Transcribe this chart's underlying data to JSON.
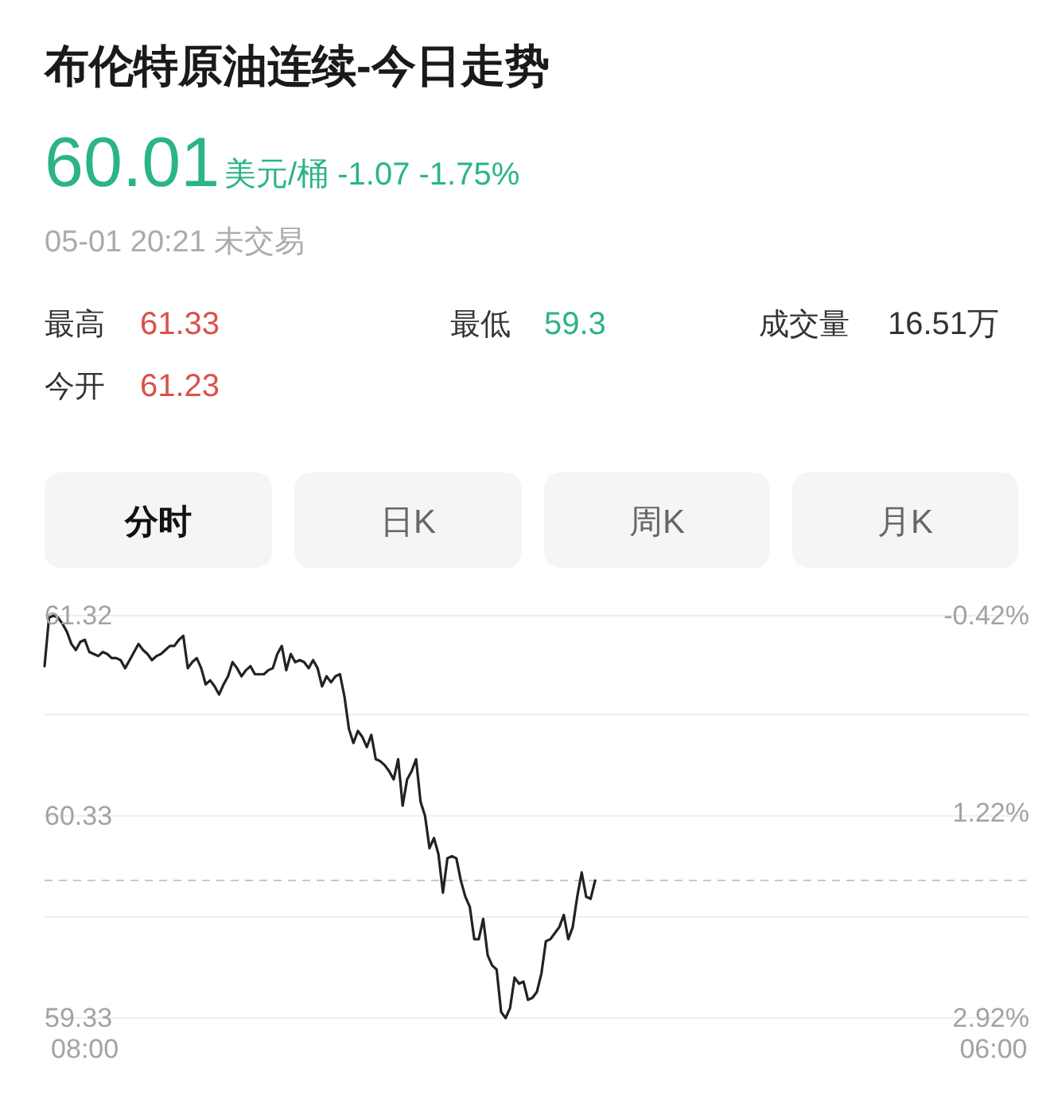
{
  "chart_data": {
    "type": "line",
    "title": "布伦特原油连续-今日走势",
    "annotations": [
      "60.01",
      "美元/桶 -1.07 -1.75%",
      "05-01 20:21 未交易",
      "最高",
      "61.33",
      "最低",
      "59.3",
      "成交量",
      "16.51万",
      "今开",
      "61.23",
      "分时",
      "日K",
      "周K",
      "月K"
    ],
    "categories": [
      null,
      null,
      null,
      null,
      null,
      null,
      null,
      null,
      null,
      "08:00",
      null,
      null,
      null,
      null,
      null,
      null,
      null,
      null,
      null,
      null,
      null,
      null,
      null,
      null,
      null,
      null,
      null,
      null,
      null,
      null,
      null,
      null,
      null,
      null,
      null,
      null,
      null,
      null,
      null,
      null,
      null,
      null,
      null,
      null,
      null,
      null,
      null,
      null,
      null,
      null,
      null,
      null,
      null,
      null,
      null,
      null,
      null,
      null,
      null,
      null,
      null,
      null,
      null,
      null,
      null,
      null,
      null,
      null,
      null,
      null,
      null,
      null,
      null,
      null,
      null,
      null,
      null,
      null,
      null,
      null,
      null,
      null,
      null,
      null,
      null,
      null,
      null,
      null,
      null,
      null,
      null,
      null,
      null,
      null,
      null,
      null,
      null,
      null,
      null,
      null,
      null,
      null,
      null,
      null,
      null,
      null,
      null,
      null,
      null,
      null,
      null,
      null,
      null,
      null,
      null,
      null,
      null,
      null,
      null,
      null,
      null,
      null,
      null,
      null,
      null,
      null,
      null,
      null,
      null,
      null,
      null,
      null,
      null,
      null,
      null,
      null,
      null,
      null,
      null,
      null,
      null,
      null,
      null,
      null,
      null,
      null,
      null,
      null,
      null,
      null,
      null,
      null,
      null,
      null,
      null,
      null,
      null,
      null,
      null,
      null,
      null,
      null,
      null,
      null,
      null,
      null,
      null,
      null,
      null,
      null,
      null,
      null,
      null,
      null,
      null,
      null,
      null,
      null,
      null,
      null,
      null,
      null,
      null,
      null,
      null,
      null,
      null,
      null,
      null,
      null,
      null,
      null,
      null,
      null,
      null,
      null,
      null,
      null,
      null,
      null,
      null,
      null,
      null,
      null,
      null,
      null,
      null,
      null,
      null,
      null,
      null,
      null,
      "06:00",
      null,
      null,
      null,
      null,
      null,
      null,
      null,
      null
    ],
    "series": [
      {
        "color": "#222222",
        "values": [
          61.07,
          61.31,
          61.32,
          61.31,
          61.28,
          61.24,
          61.18,
          61.15,
          61.19,
          61.2,
          61.14,
          61.13,
          61.12,
          61.14,
          61.13,
          61.11,
          61.11,
          61.1,
          61.06,
          61.1,
          61.14,
          61.18,
          61.15,
          61.13,
          61.1,
          61.12,
          61.13,
          61.15,
          61.17,
          61.17,
          61.2,
          61.22,
          61.06,
          61.09,
          61.11,
          61.06,
          60.98,
          61.0,
          60.97,
          60.93,
          60.98,
          61.02,
          61.09,
          61.06,
          61.02,
          61.05,
          61.07,
          61.03,
          61.03,
          61.03,
          61.05,
          61.06,
          61.13,
          61.17,
          61.05,
          61.13,
          61.09,
          61.1,
          61.09,
          61.06,
          61.1,
          61.06,
          60.97,
          61.02,
          60.99,
          61.02,
          61.03,
          60.92,
          60.76,
          60.69,
          60.75,
          60.72,
          60.67,
          60.73,
          60.61,
          60.6,
          60.58,
          60.55,
          60.51,
          60.61,
          60.38,
          60.51,
          60.55,
          60.61,
          60.4,
          60.33,
          60.17,
          60.22,
          60.14,
          59.95,
          60.12,
          60.13,
          60.12,
          60.01,
          59.93,
          59.88,
          59.72,
          59.72,
          59.82,
          59.64,
          59.59,
          59.57,
          59.36,
          59.33,
          59.38,
          59.53,
          59.5,
          59.51,
          59.42,
          59.43,
          59.46,
          59.55,
          59.71,
          59.72,
          59.75,
          59.78,
          59.84,
          59.72,
          59.78,
          59.93,
          60.05,
          59.93,
          59.92,
          60.01,
          null,
          null,
          null,
          null,
          null,
          null,
          null,
          null,
          null,
          null,
          null,
          null,
          null,
          null,
          null,
          null,
          null,
          null,
          null,
          null,
          null,
          null,
          null,
          null,
          null,
          null,
          null,
          null,
          null,
          null,
          null,
          null,
          null,
          null,
          null,
          null,
          null,
          null,
          null,
          null,
          null,
          null,
          null,
          null,
          null,
          null,
          null,
          null,
          null,
          null,
          null,
          null,
          null,
          null,
          null,
          null,
          null,
          null,
          null,
          null,
          null,
          null,
          null,
          null,
          null,
          null,
          null,
          null,
          null,
          null,
          null,
          null,
          null,
          null,
          null,
          null,
          null,
          null,
          null,
          null,
          null,
          null,
          null,
          null,
          null,
          null,
          null,
          null,
          null,
          null,
          null,
          null,
          null,
          null,
          null,
          null,
          null
        ]
      }
    ],
    "ylim": [
      59.33,
      61.32
    ],
    "yticks": [
      61.32,
      {
        "value": 60.83,
        "label": null
      },
      60.33,
      {
        "value": 59.83,
        "label": null
      },
      59.33
    ],
    "y2lim": [
      2.92,
      -0.42
    ],
    "y2ticks": [
      {
        "value": -0.42,
        "label": "-0.42%"
      },
      {
        "value": 1.22,
        "label": "1.22%"
      },
      {
        "value": 2.92,
        "label": "2.92%"
      }
    ],
    "ref_lines": [
      {
        "axis": "y",
        "value": 60.01,
        "color": "#c8c8c8",
        "line_style": "dashed"
      }
    ],
    "grid": "y"
  }
}
